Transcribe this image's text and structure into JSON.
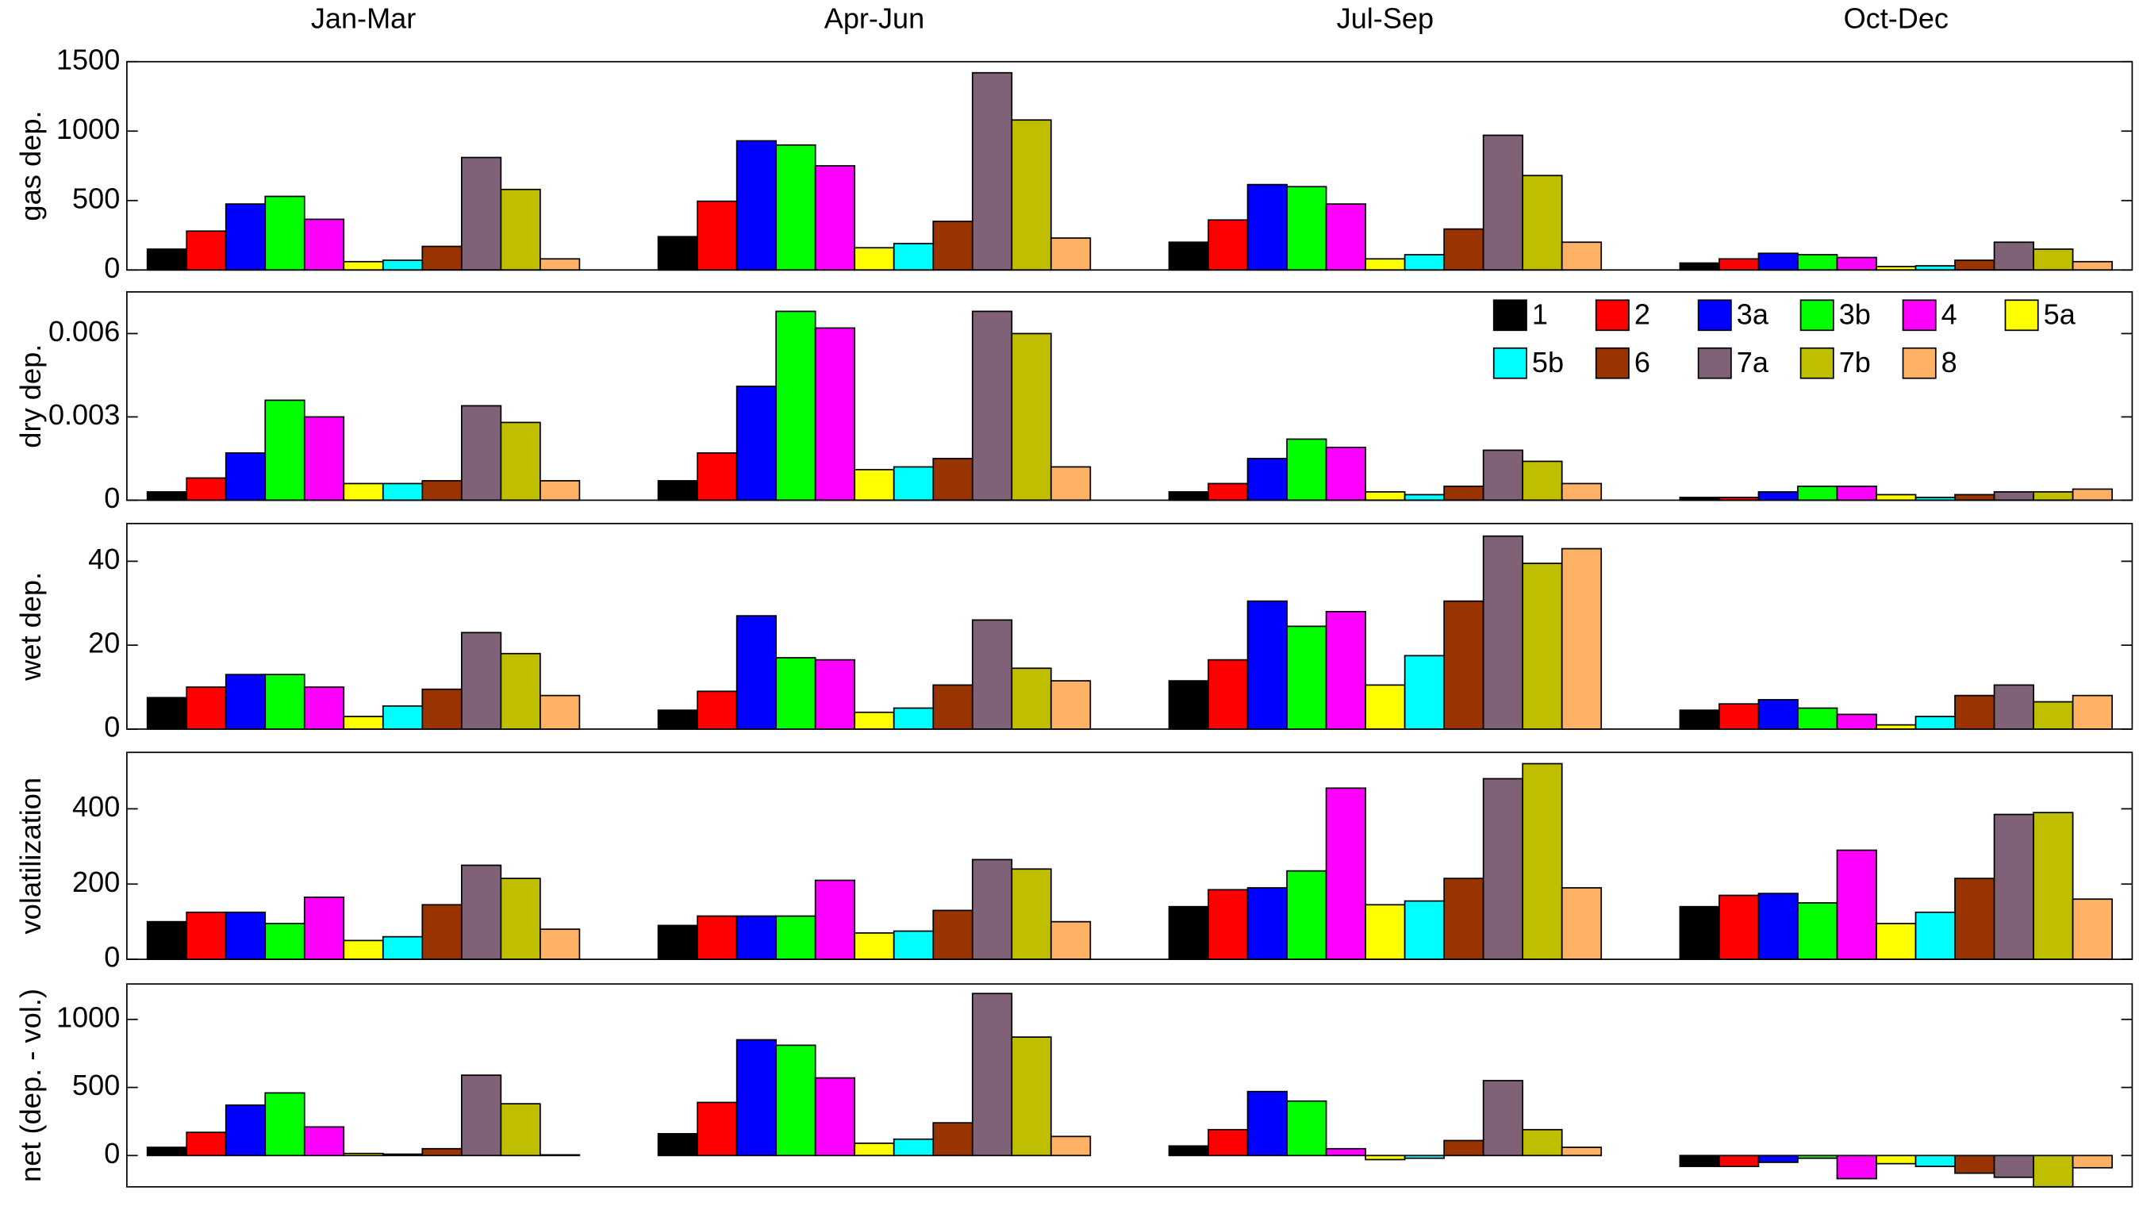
{
  "chart_data": [
    {
      "type": "bar",
      "ylabel": "gas dep.",
      "categories": [
        "Jan-Mar",
        "Apr-Jun",
        "Jul-Sep",
        "Oct-Dec"
      ],
      "ylim": [
        0,
        1500
      ],
      "yticks": [
        0,
        500,
        1000,
        1500
      ],
      "series": [
        {
          "color": "#000000",
          "values": [
            150,
            240,
            200,
            50
          ]
        },
        {
          "color": "#ff0000",
          "values": [
            280,
            495,
            360,
            80
          ]
        },
        {
          "color": "#0000ff",
          "values": [
            475,
            930,
            615,
            120
          ]
        },
        {
          "color": "#00ff00",
          "values": [
            530,
            900,
            600,
            110
          ]
        },
        {
          "color": "#ff00ff",
          "values": [
            365,
            750,
            475,
            90
          ]
        },
        {
          "color": "#ffff00",
          "values": [
            60,
            160,
            80,
            25
          ]
        },
        {
          "color": "#00ffff",
          "values": [
            70,
            190,
            110,
            30
          ]
        },
        {
          "color": "#993300",
          "values": [
            170,
            350,
            295,
            70
          ]
        },
        {
          "color": "#7f6278",
          "values": [
            810,
            1420,
            970,
            200
          ]
        },
        {
          "color": "#bfbf00",
          "values": [
            580,
            1080,
            680,
            150
          ]
        },
        {
          "color": "#ffb266",
          "values": [
            80,
            230,
            200,
            60
          ]
        }
      ]
    },
    {
      "type": "bar",
      "ylabel": "dry dep.",
      "ylim": [
        0,
        0.0075
      ],
      "yticks": [
        0,
        0.003,
        0.006
      ],
      "series": [
        {
          "name": "1",
          "color": "#000000",
          "values": [
            0.0003,
            0.0007,
            0.0003,
            0.0001
          ]
        },
        {
          "name": "2",
          "color": "#ff0000",
          "values": [
            0.0008,
            0.0017,
            0.0006,
            0.0001
          ]
        },
        {
          "name": "3a",
          "color": "#0000ff",
          "values": [
            0.0017,
            0.0041,
            0.0015,
            0.0003
          ]
        },
        {
          "name": "3b",
          "color": "#00ff00",
          "values": [
            0.0036,
            0.0068,
            0.0022,
            0.0005
          ]
        },
        {
          "name": "4",
          "color": "#ff00ff",
          "values": [
            0.003,
            0.0062,
            0.0019,
            0.0005
          ]
        },
        {
          "name": "5a",
          "color": "#ffff00",
          "values": [
            0.0006,
            0.0011,
            0.0003,
            0.0002
          ]
        },
        {
          "name": "5b",
          "color": "#00ffff",
          "values": [
            0.0006,
            0.0012,
            0.0002,
            0.0001
          ]
        },
        {
          "name": "6",
          "color": "#993300",
          "values": [
            0.0007,
            0.0015,
            0.0005,
            0.0002
          ]
        },
        {
          "name": "7a",
          "color": "#7f6278",
          "values": [
            0.0034,
            0.0068,
            0.0018,
            0.0003
          ]
        },
        {
          "name": "7b",
          "color": "#bfbf00",
          "values": [
            0.0028,
            0.006,
            0.0014,
            0.0003
          ]
        },
        {
          "name": "8",
          "color": "#ffb266",
          "values": [
            0.0007,
            0.0012,
            0.0006,
            0.0004
          ]
        }
      ]
    },
    {
      "type": "bar",
      "ylabel": "wet dep.",
      "ylim": [
        0,
        49
      ],
      "yticks": [
        0,
        20,
        40
      ],
      "series": [
        {
          "color": "#000000",
          "values": [
            7.5,
            4.5,
            11.5,
            4.5
          ]
        },
        {
          "color": "#ff0000",
          "values": [
            10,
            9,
            16.5,
            6
          ]
        },
        {
          "color": "#0000ff",
          "values": [
            13,
            27,
            30.5,
            7
          ]
        },
        {
          "color": "#00ff00",
          "values": [
            13,
            17,
            24.5,
            5
          ]
        },
        {
          "color": "#ff00ff",
          "values": [
            10,
            16.5,
            28,
            3.5
          ]
        },
        {
          "color": "#ffff00",
          "values": [
            3,
            4,
            10.5,
            1
          ]
        },
        {
          "color": "#00ffff",
          "values": [
            5.5,
            5,
            17.5,
            3
          ]
        },
        {
          "color": "#993300",
          "values": [
            9.5,
            10.5,
            30.5,
            8
          ]
        },
        {
          "color": "#7f6278",
          "values": [
            23,
            26,
            46,
            10.5
          ]
        },
        {
          "color": "#bfbf00",
          "values": [
            18,
            14.5,
            39.5,
            6.5
          ]
        },
        {
          "color": "#ffb266",
          "values": [
            8,
            11.5,
            43,
            8
          ]
        }
      ]
    },
    {
      "type": "bar",
      "ylabel": "volatilization",
      "ylim": [
        0,
        550
      ],
      "yticks": [
        0,
        200,
        400
      ],
      "series": [
        {
          "color": "#000000",
          "values": [
            100,
            90,
            140,
            140
          ]
        },
        {
          "color": "#ff0000",
          "values": [
            125,
            115,
            185,
            170
          ]
        },
        {
          "color": "#0000ff",
          "values": [
            125,
            115,
            190,
            175
          ]
        },
        {
          "color": "#00ff00",
          "values": [
            95,
            115,
            235,
            150
          ]
        },
        {
          "color": "#ff00ff",
          "values": [
            165,
            210,
            455,
            290
          ]
        },
        {
          "color": "#ffff00",
          "values": [
            50,
            70,
            145,
            95
          ]
        },
        {
          "color": "#00ffff",
          "values": [
            60,
            75,
            155,
            125
          ]
        },
        {
          "color": "#993300",
          "values": [
            145,
            130,
            215,
            215
          ]
        },
        {
          "color": "#7f6278",
          "values": [
            250,
            265,
            480,
            385
          ]
        },
        {
          "color": "#bfbf00",
          "values": [
            215,
            240,
            520,
            390
          ]
        },
        {
          "color": "#ffb266",
          "values": [
            80,
            100,
            190,
            160
          ]
        }
      ]
    },
    {
      "type": "bar",
      "ylabel": "net (dep. - vol.)",
      "ylim": [
        -230,
        1260
      ],
      "yticks": [
        0,
        500,
        1000
      ],
      "series": [
        {
          "color": "#000000",
          "values": [
            60,
            160,
            70,
            -80
          ]
        },
        {
          "color": "#ff0000",
          "values": [
            170,
            390,
            190,
            -80
          ]
        },
        {
          "color": "#0000ff",
          "values": [
            370,
            850,
            470,
            -50
          ]
        },
        {
          "color": "#00ff00",
          "values": [
            460,
            810,
            400,
            -20
          ]
        },
        {
          "color": "#ff00ff",
          "values": [
            210,
            570,
            50,
            -170
          ]
        },
        {
          "color": "#ffff00",
          "values": [
            15,
            90,
            -30,
            -60
          ]
        },
        {
          "color": "#00ffff",
          "values": [
            10,
            120,
            -20,
            -80
          ]
        },
        {
          "color": "#993300",
          "values": [
            50,
            240,
            110,
            -130
          ]
        },
        {
          "color": "#7f6278",
          "values": [
            590,
            1190,
            550,
            -160
          ]
        },
        {
          "color": "#bfbf00",
          "values": [
            380,
            870,
            190,
            -230
          ]
        },
        {
          "color": "#ffb266",
          "values": [
            5,
            140,
            60,
            -90
          ]
        }
      ]
    }
  ]
}
